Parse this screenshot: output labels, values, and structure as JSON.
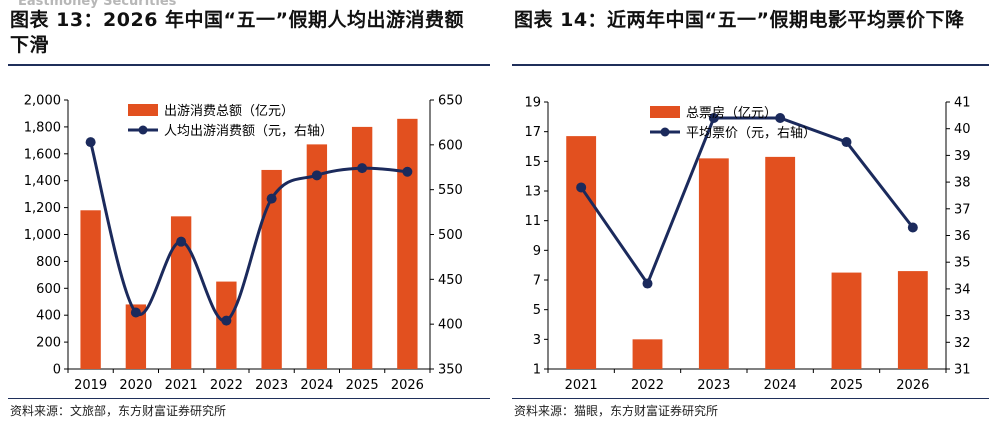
{
  "watermark": "Eastmoney Securities",
  "colors": {
    "bar": "#e2501f",
    "line": "#1b2a5c",
    "rule": "#1f2f5a"
  },
  "left": {
    "title": "图表 13：2026 年中国“五一”假期人均出游消费额下滑",
    "source": "资料来源：文旅部，东方财富证券研究所",
    "chart_data": {
      "type": "bar",
      "categories": [
        "2019",
        "2020",
        "2021",
        "2022",
        "2023",
        "2024",
        "2025",
        "2026"
      ],
      "series": [
        {
          "name": "出游消费总额（亿元）",
          "type": "bar",
          "axis": "left",
          "values": [
            1180,
            480,
            1135,
            650,
            1480,
            1670,
            1800,
            1860
          ]
        },
        {
          "name": "人均出游消费额（元，右轴）",
          "type": "line",
          "axis": "right",
          "values": [
            603,
            413,
            492,
            404,
            540,
            566,
            574,
            570
          ]
        }
      ],
      "ylim": [
        0,
        2000
      ],
      "yticks": [
        0,
        200,
        400,
        600,
        800,
        1000,
        1200,
        1400,
        1600,
        1800,
        2000
      ],
      "ytick_labels": [
        "0",
        "200",
        "400",
        "600",
        "800",
        "1,000",
        "1,200",
        "1,400",
        "1,600",
        "1,800",
        "2,000"
      ],
      "y2lim": [
        350,
        650
      ],
      "y2ticks": [
        350,
        400,
        450,
        500,
        550,
        600,
        650
      ],
      "line_smooth": true,
      "legend_position": "top-left"
    }
  },
  "right": {
    "title": "图表 14：近两年中国“五一”假期电影平均票价下降",
    "source": "资料来源：猫眼，东方财富证券研究所",
    "chart_data": {
      "type": "bar",
      "categories": [
        "2021",
        "2022",
        "2023",
        "2024",
        "2025",
        "2026"
      ],
      "series": [
        {
          "name": "总票房（亿元）",
          "type": "bar",
          "axis": "left",
          "values": [
            16.7,
            3.0,
            15.2,
            15.3,
            7.5,
            7.6
          ]
        },
        {
          "name": "平均票价（元，右轴）",
          "type": "line",
          "axis": "right",
          "values": [
            37.8,
            34.2,
            40.4,
            40.4,
            39.5,
            36.3
          ]
        }
      ],
      "ylim": [
        1,
        19
      ],
      "yticks": [
        1,
        3,
        5,
        7,
        9,
        11,
        13,
        15,
        17,
        19
      ],
      "ytick_labels": [
        "1",
        "3",
        "5",
        "7",
        "9",
        "11",
        "13",
        "15",
        "17",
        "19"
      ],
      "y2lim": [
        31,
        41
      ],
      "y2ticks": [
        31,
        32,
        33,
        34,
        35,
        36,
        37,
        38,
        39,
        40,
        41
      ],
      "line_smooth": false,
      "legend_position": "top-left"
    }
  }
}
